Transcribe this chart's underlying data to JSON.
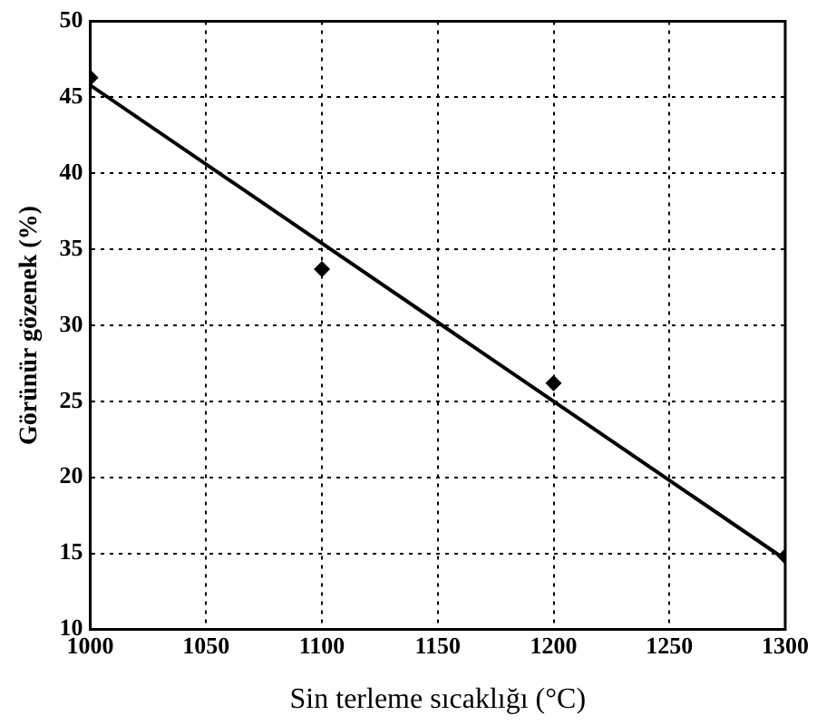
{
  "chart_data": {
    "type": "scatter",
    "xlabel": "Sin terleme sıcaklığı (°C)",
    "ylabel": "Görünür gözenek (%)",
    "xlim": [
      1000,
      1300
    ],
    "xticks": [
      1000,
      1050,
      1100,
      1150,
      1200,
      1250,
      1300
    ],
    "ylim": [
      10,
      50
    ],
    "yticks": [
      10,
      15,
      20,
      25,
      30,
      35,
      40,
      45,
      50
    ],
    "grid": true,
    "legend": false,
    "marker": "diamond",
    "series": [
      {
        "color": "#000000",
        "x": [
          1000,
          1100,
          1200,
          1300
        ],
        "values": [
          46.3,
          33.7,
          26.2,
          14.8
        ]
      },
      {
        "type": "line",
        "color": "#000000",
        "x": [
          1000,
          1300
        ],
        "values": [
          45.8,
          14.6
        ],
        "marker": "none",
        "line_style": "solid"
      }
    ]
  }
}
